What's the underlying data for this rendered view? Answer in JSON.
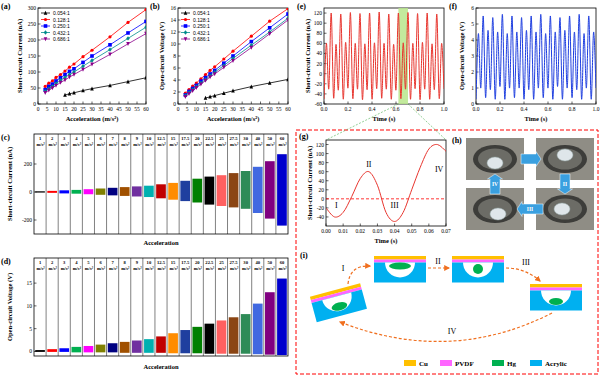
{
  "chart_data": [
    {
      "type": "line",
      "title": "(a)",
      "x_label": "Acceleration (m/s²)",
      "y_label": "Short-circuit Current (nA)",
      "x": [
        4,
        6,
        8,
        10,
        12.5,
        15,
        17.5,
        20,
        25,
        30,
        40,
        50,
        60
      ],
      "xlim": [
        0,
        60
      ],
      "xticks": [
        0,
        5,
        10,
        15,
        20,
        25,
        30,
        35,
        40,
        45,
        50,
        55,
        60
      ],
      "ylim": [
        0,
        300
      ],
      "yticks": [
        0,
        50,
        100,
        150,
        200,
        250,
        300
      ],
      "legend": "upper-left",
      "series": [
        {
          "name": "0.054:1",
          "color": "#000000",
          "marker": "triangle",
          "values": [
            null,
            null,
            null,
            null,
            null,
            28,
            32,
            35,
            42,
            48,
            58,
            70,
            82
          ]
        },
        {
          "name": "0.128:1",
          "color": "#ff0000",
          "marker": "circle",
          "values": [
            55,
            65,
            72,
            83,
            92,
            103,
            115,
            125,
            148,
            168,
            210,
            255,
            295
          ]
        },
        {
          "name": "0.250:1",
          "color": "#0000ff",
          "marker": "square",
          "values": [
            45,
            55,
            62,
            72,
            82,
            92,
            102,
            110,
            130,
            150,
            185,
            222,
            258
          ]
        },
        {
          "name": "0.432:1",
          "color": "#008b8b",
          "marker": "diamond",
          "values": [
            40,
            48,
            55,
            64,
            74,
            83,
            92,
            100,
            118,
            136,
            170,
            205,
            240
          ]
        },
        {
          "name": "0.686:1",
          "color": "#8b008b",
          "marker": "triangle-down",
          "values": [
            35,
            43,
            50,
            58,
            67,
            75,
            84,
            92,
            108,
            124,
            155,
            188,
            220
          ]
        }
      ]
    },
    {
      "type": "line",
      "title": "(b)",
      "x_label": "Acceleration (m/s²)",
      "y_label": "Open-circuit Voltage (V)",
      "x": [
        4,
        6,
        8,
        10,
        12.5,
        15,
        17.5,
        20,
        25,
        30,
        40,
        50,
        60
      ],
      "xlim": [
        0,
        60
      ],
      "xticks": [
        0,
        5,
        10,
        15,
        20,
        25,
        30,
        35,
        40,
        45,
        50,
        55,
        60
      ],
      "ylim": [
        0,
        16
      ],
      "yticks": [
        0,
        2,
        4,
        6,
        8,
        10,
        12,
        14,
        16
      ],
      "legend": "upper-left",
      "series": [
        {
          "name": "0.054:1",
          "color": "#000000",
          "marker": "triangle",
          "values": [
            null,
            null,
            null,
            null,
            null,
            1.0,
            1.2,
            1.4,
            1.8,
            2.2,
            2.9,
            3.5,
            4.1
          ]
        },
        {
          "name": "0.128:1",
          "color": "#ff0000",
          "marker": "circle",
          "values": [
            1.8,
            2.4,
            3.0,
            3.5,
            4.2,
            4.9,
            5.6,
            6.2,
            7.5,
            8.8,
            11.3,
            13.8,
            15.9
          ]
        },
        {
          "name": "0.250:1",
          "color": "#0000ff",
          "marker": "square",
          "values": [
            1.5,
            2.1,
            2.6,
            3.1,
            3.8,
            4.4,
            5.0,
            5.6,
            6.8,
            8.0,
            10.4,
            12.7,
            15.0
          ]
        },
        {
          "name": "0.432:1",
          "color": "#008b8b",
          "marker": "diamond",
          "values": [
            1.4,
            1.9,
            2.4,
            2.9,
            3.5,
            4.1,
            4.7,
            5.3,
            6.4,
            7.6,
            9.8,
            12.0,
            14.3
          ]
        },
        {
          "name": "0.686:1",
          "color": "#8b008b",
          "marker": "triangle-down",
          "values": [
            1.2,
            1.7,
            2.2,
            2.7,
            3.3,
            3.9,
            4.5,
            5.0,
            6.1,
            7.2,
            9.4,
            11.7,
            14.0
          ]
        }
      ]
    },
    {
      "type": "range_bar",
      "title": "(c)",
      "x_label": "Acceleration",
      "y_label": "Short-circuit Current (nA)",
      "categories": [
        "1 m/s²",
        "2 m/s²",
        "3 m/s²",
        "4 m/s²",
        "5 m/s²",
        "6 m/s²",
        "7 m/s²",
        "8 m/s²",
        "9 m/s²",
        "10 m/s²",
        "12.5 m/s²",
        "15 m/s²",
        "17.5 m/s²",
        "20 m/s²",
        "22.5 m/s²",
        "25 m/s²",
        "27.5 m/s²",
        "30 m/s²",
        "40 m/s²",
        "50 m/s²",
        "60 m/s²"
      ],
      "values": [
        5,
        8,
        12,
        15,
        20,
        25,
        30,
        35,
        40,
        45,
        55,
        65,
        80,
        95,
        110,
        120,
        135,
        150,
        180,
        220,
        270
      ],
      "min_values": [
        -4,
        -6,
        -10,
        -12,
        -16,
        -20,
        -24,
        -28,
        -32,
        -36,
        -45,
        -55,
        -65,
        -75,
        -90,
        -100,
        -110,
        -120,
        -150,
        -190,
        -240
      ],
      "colors": [
        "#000000",
        "#ff0000",
        "#0000ff",
        "#00b050",
        "#ff00ff",
        "#808000",
        "#000080",
        "#a05000",
        "#7030a0",
        "#00b0b0",
        "#c00000",
        "#ff8c00",
        "#1f3f9f",
        "#008000",
        "#000000",
        "#ff6060",
        "#8b4513",
        "#2e8b57",
        "#4169e1",
        "#800080",
        "#0000cd"
      ],
      "ylim": [
        -300,
        300
      ],
      "yticks": [
        -200,
        0,
        200
      ]
    },
    {
      "type": "range_bar",
      "title": "(d)",
      "x_label": "Acceleration",
      "y_label": "Open-circuit Voltage (V)",
      "categories": [
        "1 m/s²",
        "2 m/s²",
        "3 m/s²",
        "4 m/s²",
        "5 m/s²",
        "6 m/s²",
        "7 m/s²",
        "8 m/s²",
        "9 m/s²",
        "10 m/s²",
        "12.5 m/s²",
        "15 m/s²",
        "17.5 m/s²",
        "20 m/s²",
        "22.5 m/s²",
        "25 m/s²",
        "27.5 m/s²",
        "30 m/s²",
        "40 m/s²",
        "50 m/s²",
        "60 m/s²"
      ],
      "values": [
        0.3,
        0.5,
        0.7,
        1.0,
        1.2,
        1.5,
        1.8,
        2.1,
        2.4,
        2.7,
        3.3,
        4.0,
        4.7,
        5.4,
        6.1,
        6.8,
        7.5,
        8.2,
        10.5,
        13,
        16
      ],
      "min_values": [
        -0.1,
        -0.1,
        -0.1,
        -0.2,
        -0.2,
        -0.2,
        -0.2,
        -0.3,
        -0.3,
        -0.3,
        -0.3,
        -0.4,
        -0.4,
        -0.4,
        -0.5,
        -0.5,
        -0.5,
        -0.5,
        -0.6,
        -0.7,
        -0.8
      ],
      "colors": [
        "#000000",
        "#ff0000",
        "#0000ff",
        "#00b050",
        "#ff00ff",
        "#808000",
        "#000080",
        "#a05000",
        "#7030a0",
        "#00b0b0",
        "#c00000",
        "#ff8c00",
        "#1f3f9f",
        "#008000",
        "#000000",
        "#ff6060",
        "#8b4513",
        "#2e8b57",
        "#4169e1",
        "#800080",
        "#0000cd"
      ],
      "ylim": [
        -1,
        17
      ],
      "yticks": [
        0,
        5,
        10,
        15
      ]
    },
    {
      "type": "line",
      "title": "(e)",
      "x_label": "Time (s)",
      "y_label": "Short-circuit Current (nA)",
      "color": "#e8352e",
      "x": [
        0,
        0.02,
        0.04,
        0.06,
        0.08,
        0.1,
        0.12,
        0.14,
        0.16,
        0.18,
        0.2,
        0.22,
        0.24,
        0.26,
        0.28,
        0.3,
        0.32,
        0.34,
        0.36,
        0.38,
        0.4,
        0.42,
        0.44,
        0.46,
        0.48,
        0.5,
        0.52,
        0.54,
        0.56,
        0.58,
        0.6,
        0.62,
        0.64,
        0.66,
        0.68,
        0.7,
        0.72,
        0.74,
        0.76,
        0.78,
        0.8,
        0.82,
        0.84,
        0.86,
        0.88,
        0.9,
        0.92,
        0.94,
        0.96,
        0.98,
        1
      ],
      "values": [
        -50,
        60,
        -30,
        120,
        -48,
        58,
        -32,
        118,
        -50,
        62,
        -28,
        121,
        -49,
        60,
        -30,
        119,
        -51,
        59,
        -31,
        120,
        -50,
        61,
        -29,
        122,
        -48,
        60,
        -30,
        118,
        -50,
        58,
        -32,
        120,
        -49,
        61,
        -30,
        121,
        -50,
        60,
        -29,
        119,
        -51,
        62,
        -30,
        120,
        -50,
        59,
        -31,
        118,
        -49,
        60,
        -30
      ],
      "xlim": [
        0,
        1
      ],
      "xticks": [
        {
          "value": 0,
          "label": "0.0"
        },
        0.2,
        0.4,
        0.6,
        0.8,
        {
          "value": 1,
          "label": "1.0"
        }
      ],
      "ylim": [
        -60,
        130
      ],
      "yticks": [
        -60,
        -40,
        -20,
        0,
        20,
        40,
        60,
        80,
        100,
        120
      ],
      "highlight_x": [
        0.62,
        0.7
      ]
    },
    {
      "type": "line",
      "title": "(f)",
      "x_label": "Time (s)",
      "y_label": "Open-circuit Voltage (V)",
      "color": "#1f3fe0",
      "x": [
        0,
        0.02,
        0.04,
        0.06,
        0.08,
        0.1,
        0.12,
        0.14,
        0.16,
        0.18,
        0.2,
        0.22,
        0.24,
        0.26,
        0.28,
        0.3,
        0.32,
        0.34,
        0.36,
        0.38,
        0.4,
        0.42,
        0.44,
        0.46,
        0.48,
        0.5,
        0.52,
        0.54,
        0.56,
        0.58,
        0.6,
        0.62,
        0.64,
        0.66,
        0.68,
        0.7,
        0.72,
        0.74,
        0.76,
        0.78,
        0.8,
        0.82,
        0.84,
        0.86,
        0.88,
        0.9,
        0.92,
        0.94,
        0.96,
        0.98,
        1
      ],
      "values": [
        0.3,
        4.4,
        1.0,
        5.5,
        0.4,
        4.6,
        0.9,
        5.4,
        0.3,
        4.5,
        1.1,
        5.6,
        0.3,
        4.4,
        1.0,
        5.5,
        0.4,
        4.5,
        1.0,
        5.4,
        0.3,
        4.6,
        0.9,
        5.5,
        0.3,
        4.5,
        1.0,
        5.6,
        0.4,
        4.4,
        1.0,
        5.5,
        0.3,
        4.5,
        1.1,
        5.4,
        0.3,
        4.6,
        1.0,
        5.5,
        0.4,
        4.5,
        0.9,
        5.6,
        0.3,
        4.4,
        1.0,
        5.5,
        0.3,
        4.5,
        1.0
      ],
      "xlim": [
        0,
        1
      ],
      "xticks": [
        {
          "value": 0,
          "label": "0.0"
        },
        0.2,
        0.4,
        0.6,
        0.8,
        {
          "value": 1,
          "label": "1.0"
        }
      ],
      "ylim": [
        0,
        6
      ],
      "yticks": [
        0,
        1,
        2,
        3,
        4,
        5,
        6
      ]
    },
    {
      "type": "line",
      "title": "(g)",
      "x_label": "Time (s)",
      "y_label": "Short-circuit Current (nA)",
      "color": "#e8352e",
      "x": [
        0,
        0.005,
        0.01,
        0.015,
        0.02,
        0.025,
        0.03,
        0.035,
        0.04,
        0.045,
        0.05,
        0.055,
        0.06,
        0.065,
        0.07
      ],
      "values": [
        -20,
        -40,
        -30,
        5,
        45,
        60,
        30,
        -30,
        -50,
        -30,
        20,
        70,
        110,
        120,
        105
      ],
      "xlim": [
        0,
        0.07
      ],
      "xticks": [
        {
          "value": 0,
          "label": "0.00"
        },
        {
          "value": 0.01,
          "label": "0.01"
        },
        {
          "value": 0.02,
          "label": "0.02"
        },
        {
          "value": 0.03,
          "label": "0.03"
        },
        {
          "value": 0.04,
          "label": "0.04"
        },
        {
          "value": 0.05,
          "label": "0.05"
        },
        {
          "value": 0.06,
          "label": "0.06"
        },
        {
          "value": 0.07,
          "label": "0.07"
        }
      ],
      "ylim": [
        -60,
        130
      ],
      "yticks": [
        -40,
        -20,
        0,
        20,
        40,
        60,
        80,
        100,
        120
      ],
      "reference_y": 0,
      "annotations": [
        {
          "text": "I",
          "x": 0.006,
          "y": -20
        },
        {
          "text": "II",
          "x": 0.025,
          "y": 70
        },
        {
          "text": "III",
          "x": 0.04,
          "y": -20
        },
        {
          "text": "IV",
          "x": 0.066,
          "y": 60
        }
      ]
    }
  ],
  "photos": {
    "title": "(h)",
    "arrow_labels": [
      "IV",
      "II",
      "III"
    ]
  },
  "diagram": {
    "title": "(i)",
    "steps": [
      "I",
      "II",
      "III",
      "IV"
    ],
    "legend": [
      {
        "name": "Cu",
        "color": "#ffc000"
      },
      {
        "name": "PVDF",
        "color": "#ff66ff"
      },
      {
        "name": "Hg",
        "color": "#00b050"
      },
      {
        "name": "Acrylic",
        "color": "#00b0f0"
      }
    ]
  }
}
